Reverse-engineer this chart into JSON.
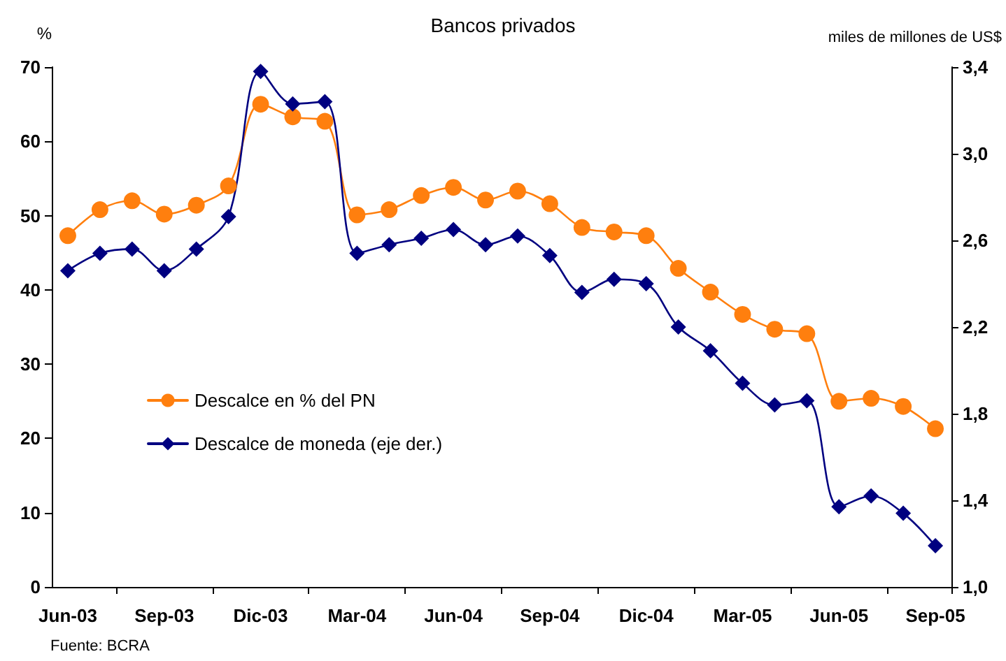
{
  "chart_data": {
    "type": "line",
    "title": "Bancos privados",
    "ylabel": "%",
    "y2label": "miles de millones de US$",
    "annotations": [
      "Fuente: BCRA"
    ],
    "categories": [
      "Jun-03",
      null,
      null,
      "Sep-03",
      null,
      null,
      "Dic-03",
      null,
      null,
      "Mar-04",
      null,
      null,
      "Jun-04",
      null,
      null,
      "Sep-04",
      null,
      null,
      "Dic-04",
      null,
      null,
      "Mar-05",
      null,
      null,
      "Jun-05",
      null,
      null,
      "Sep-05"
    ],
    "series": [
      {
        "name": "Descalce en % del PN",
        "color": "#ff7f0e",
        "marker": "circle",
        "values": [
          47.3,
          50.8,
          52.0,
          50.2,
          51.4,
          54.0,
          65.0,
          63.3,
          62.7,
          50.1,
          50.8,
          52.7,
          53.8,
          52.1,
          53.3,
          51.6,
          48.4,
          47.8,
          47.3,
          42.9,
          39.7,
          36.7,
          34.7,
          34.1,
          25.0,
          25.4,
          24.3,
          21.3
        ]
      },
      {
        "name": "Descalce de moneda (eje der.)",
        "color": "#000080",
        "marker": "diamond",
        "axis": "y2",
        "values": [
          2.46,
          2.54,
          2.56,
          2.46,
          2.56,
          2.71,
          3.38,
          3.23,
          3.24,
          2.54,
          2.58,
          2.61,
          2.65,
          2.58,
          2.62,
          2.53,
          2.36,
          2.42,
          2.4,
          2.2,
          2.09,
          1.94,
          1.84,
          1.86,
          1.37,
          1.42,
          1.34,
          1.19
        ]
      }
    ],
    "ylim": [
      0,
      70
    ],
    "yticks": [
      0,
      10,
      20,
      30,
      40,
      50,
      60,
      70
    ],
    "y2lim": [
      1.0,
      3.4
    ],
    "y2ticks": [
      {
        "value": 1.0,
        "label": "1,0"
      },
      {
        "value": 1.4,
        "label": "1,4"
      },
      {
        "value": 1.8,
        "label": "1,8"
      },
      {
        "value": 2.2,
        "label": "2,2"
      },
      {
        "value": 2.6,
        "label": "2,6"
      },
      {
        "value": 3.0,
        "label": "3,0"
      },
      {
        "value": 3.4,
        "label": "3,4"
      }
    ],
    "legend": "left",
    "grid": false,
    "line_style": "solid"
  }
}
